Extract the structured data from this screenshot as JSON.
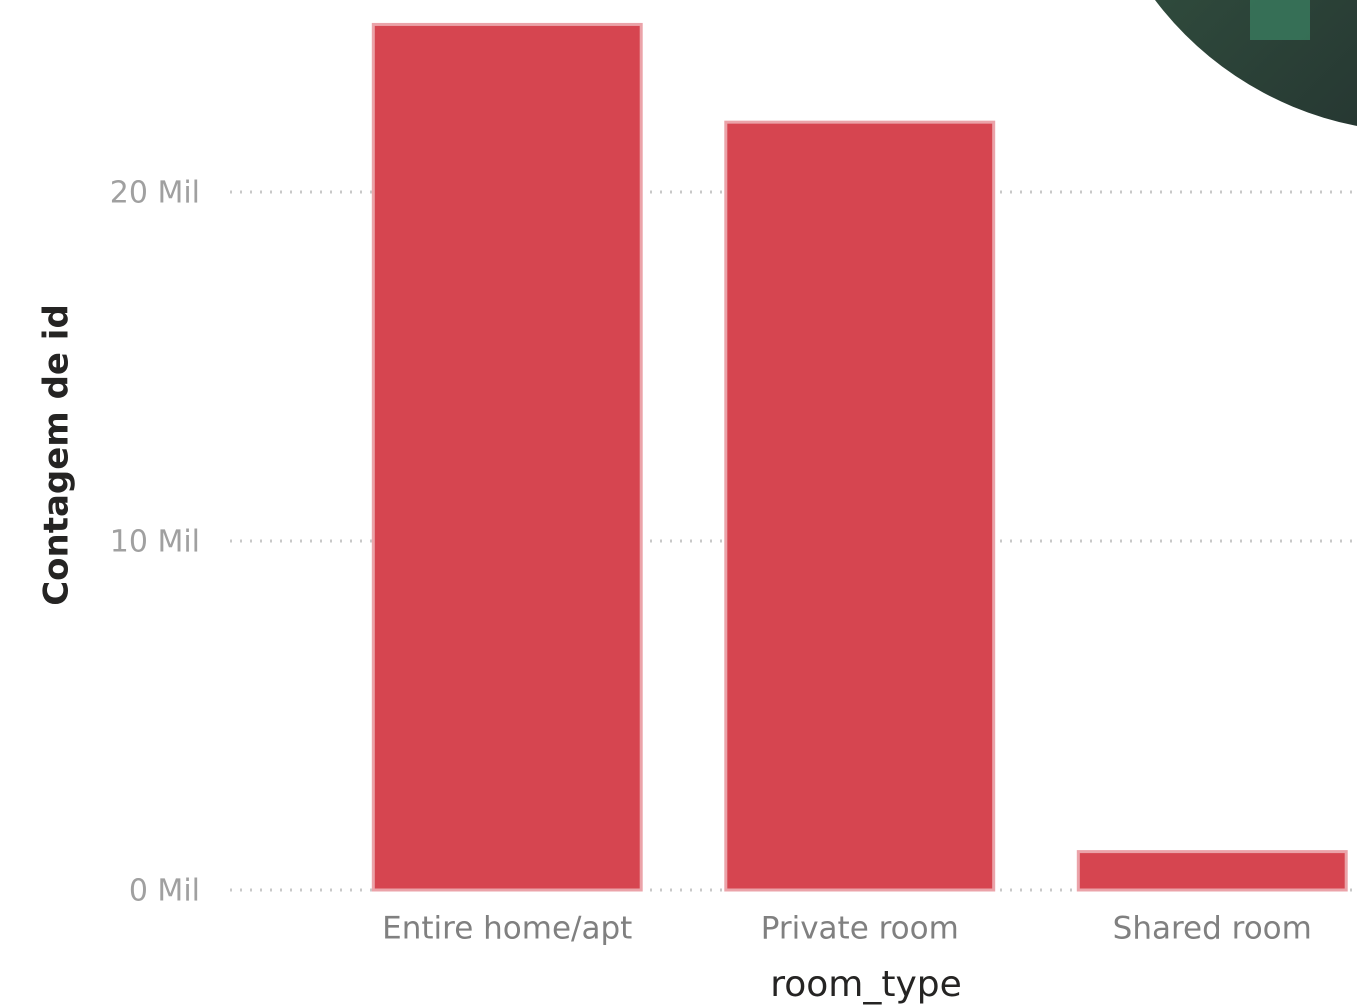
{
  "chart_data": {
    "type": "bar",
    "x_label": "room_type",
    "y_label": "Contagem de id",
    "categories": [
      "Entire home/apt",
      "Private room",
      "Shared room"
    ],
    "values": [
      24800,
      22000,
      1100
    ],
    "color": "#d64550",
    "ylim": [
      0,
      25500
    ],
    "yticks": [
      {
        "value": 0,
        "label": "0 Mil"
      },
      {
        "value": 10000,
        "label": "10 Mil"
      },
      {
        "value": 20000,
        "label": "20 Mil"
      }
    ],
    "grid": true
  }
}
